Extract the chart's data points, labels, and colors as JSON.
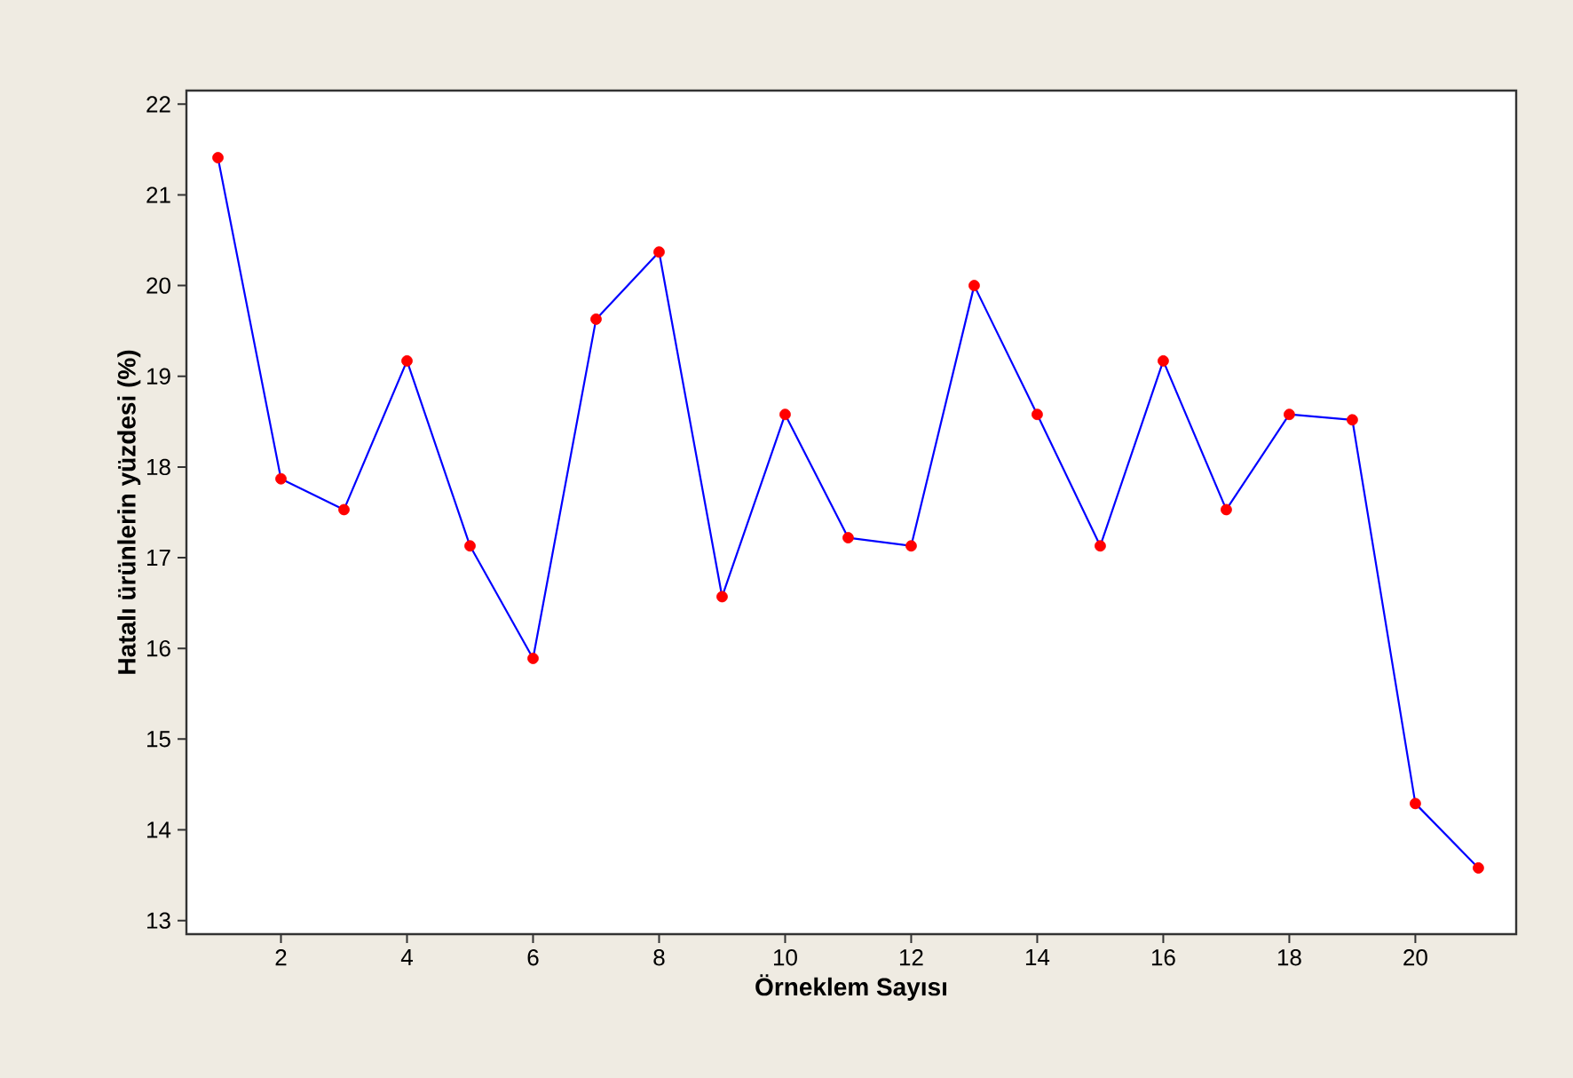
{
  "chart_data": {
    "type": "line",
    "xlabel": "Örneklem Sayısı",
    "ylabel": "Hatalı ürünlerin yüzdesi (%)",
    "x": [
      1,
      2,
      3,
      4,
      5,
      6,
      7,
      8,
      9,
      10,
      11,
      12,
      13,
      14,
      15,
      16,
      17,
      18,
      19,
      20,
      21
    ],
    "series": [
      {
        "color": "#0000ff",
        "colors": [
          "#ff0000",
          "#ff0000",
          "#ff0000",
          "#ff0000",
          "#ff0000",
          "#ff0000",
          "#ff0000",
          "#ff0000",
          "#ff0000",
          "#ff0000",
          "#ff0000",
          "#ff0000",
          "#ff0000",
          "#ff0000",
          "#ff0000",
          "#ff0000",
          "#ff0000",
          "#ff0000",
          "#ff0000",
          "#ff0000",
          "#ff0000"
        ],
        "values": [
          21.41,
          17.87,
          17.53,
          19.17,
          17.13,
          15.89,
          19.63,
          20.37,
          16.57,
          18.58,
          17.22,
          17.13,
          20.0,
          18.58,
          17.13,
          19.17,
          17.53,
          18.58,
          18.52,
          14.29,
          13.58
        ]
      }
    ],
    "marker": "circle",
    "line_style": "solid",
    "xlim": [
      0.5,
      21.6
    ],
    "ylim": [
      12.85,
      22.15
    ],
    "xticks": [
      2,
      4,
      6,
      8,
      10,
      12,
      14,
      16,
      18,
      20
    ],
    "yticks": [
      13,
      14,
      15,
      16,
      17,
      18,
      19,
      20,
      21,
      22
    ]
  }
}
